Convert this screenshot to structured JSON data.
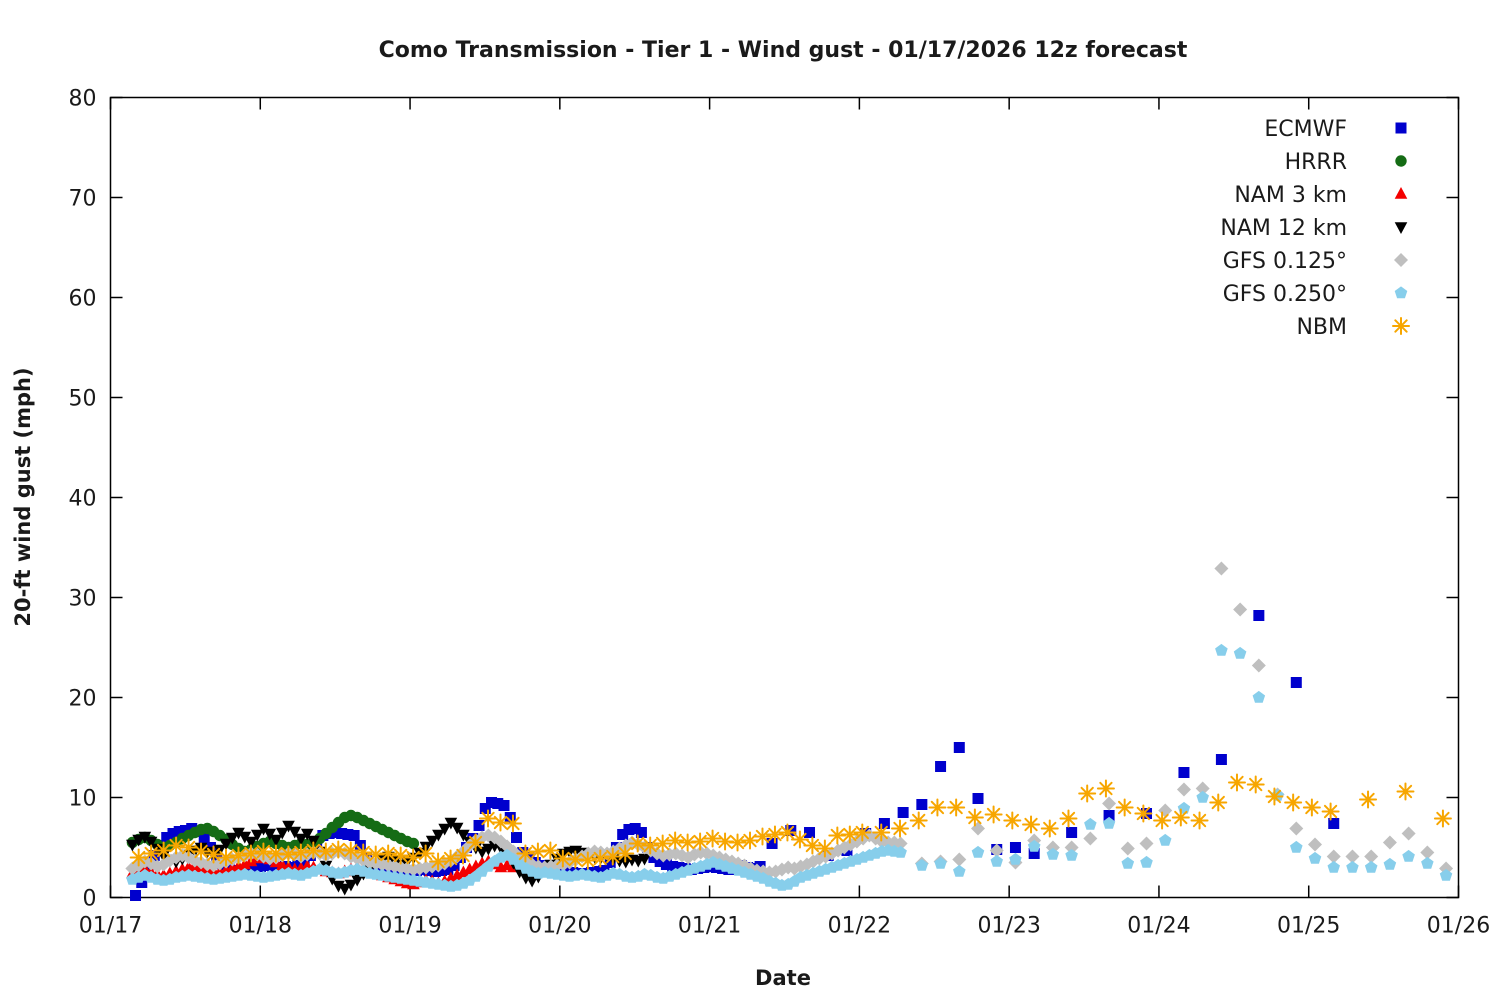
{
  "chart_data": {
    "type": "scatter",
    "title": "Como Transmission - Tier 1 - Wind gust - 01/17/2026 12z forecast",
    "xlabel": "Date",
    "ylabel": "20-ft wind gust (mph)",
    "ylim": [
      0,
      80
    ],
    "yticks": [
      0,
      10,
      20,
      30,
      40,
      50,
      60,
      70,
      80
    ],
    "xtick_labels": [
      "01/17",
      "01/18",
      "01/19",
      "01/20",
      "01/21",
      "01/22",
      "01/23",
      "01/24",
      "01/25",
      "01/26"
    ],
    "x_span_days": 9,
    "grid": false,
    "legend_position": "top-right",
    "frame_color": "#000000",
    "background_color": "#ffffff",
    "series": [
      {
        "name": "ECMWF",
        "marker": "square",
        "color": "#0000cd",
        "segments": [
          {
            "start": 0.167,
            "step": 0.0417,
            "values": [
              0.2,
              1.5,
              3.0,
              4.2,
              5.2,
              6.0,
              6.4,
              6.6,
              6.7,
              6.9,
              6.6,
              6.0,
              5.0,
              4.0,
              3.3,
              2.9,
              2.7,
              2.6,
              2.7,
              2.9,
              3.1,
              3.2,
              3.1,
              3.0,
              3.1,
              3.0,
              3.2,
              3.4,
              4.2,
              5.4,
              6.2,
              6.4,
              6.5,
              6.4,
              6.3,
              6.2,
              5.2,
              4.0,
              3.2,
              3.0,
              2.8,
              2.7,
              2.6,
              2.6,
              2.6,
              2.7,
              2.8,
              2.7,
              2.6,
              2.7,
              2.8,
              3.2,
              4.0,
              5.0,
              5.9,
              7.2,
              8.9,
              9.5,
              9.4,
              9.2,
              8.0,
              6.0,
              4.5,
              4.0,
              3.5,
              3.2,
              3.0,
              2.8,
              2.7,
              2.6,
              2.5,
              2.4,
              2.4,
              2.5,
              2.6,
              2.7,
              3.5,
              5.0,
              6.3,
              6.8,
              6.9,
              6.5,
              5.0,
              4.0,
              3.6,
              3.3,
              3.1,
              3.0,
              2.9,
              2.8,
              2.9,
              3.0,
              3.1,
              3.0,
              2.9,
              2.8,
              3.0,
              3.2,
              3.0,
              2.9,
              3.1
            ]
          },
          {
            "start": 4.417,
            "step": 0.125,
            "values": [
              5.4,
              6.7,
              6.5,
              4.2,
              4.7,
              6.4,
              7.4,
              8.5,
              9.3,
              13.1,
              15.0,
              9.9,
              4.8,
              5.0,
              4.4
            ]
          },
          {
            "start": 6.417,
            "step": 0.25,
            "values": [
              6.5,
              8.2,
              8.4,
              12.5,
              13.8,
              28.2,
              21.5,
              7.4
            ]
          }
        ]
      },
      {
        "name": "HRRR",
        "marker": "circle",
        "color": "#156c15",
        "segments": [
          {
            "start": 0.146,
            "step": 0.0417,
            "values": [
              5.5,
              5.8,
              6.0,
              5.7,
              5.3,
              5.0,
              5.2,
              5.5,
              5.9,
              6.2,
              6.5,
              6.8,
              6.9,
              6.6,
              6.2,
              5.8,
              5.3,
              4.9,
              4.6,
              4.8,
              5.1,
              5.4,
              5.6,
              5.4,
              5.2,
              5.0,
              5.2,
              5.4,
              5.3,
              5.5,
              5.9,
              6.4,
              7.0,
              7.5,
              8.0,
              8.2,
              8.0,
              7.7,
              7.4,
              7.1,
              6.8,
              6.5,
              6.2,
              5.9,
              5.6,
              5.4
            ]
          }
        ]
      },
      {
        "name": "NAM 3 km",
        "marker": "triangle-up",
        "color": "#f40000",
        "segments": [
          {
            "start": 0.146,
            "step": 0.0417,
            "values": [
              2.4,
              2.6,
              2.8,
              2.5,
              2.3,
              2.2,
              2.4,
              2.6,
              2.8,
              3.0,
              3.2,
              3.0,
              2.8,
              2.6,
              2.5,
              2.7,
              2.9,
              3.1,
              3.3,
              3.6,
              3.9,
              4.1,
              3.8,
              3.5,
              3.2,
              3.0,
              2.8,
              2.9,
              3.1,
              3.0,
              2.8,
              2.6,
              2.5,
              2.4,
              2.6,
              2.8,
              3.0,
              2.8,
              2.6,
              2.4,
              2.2,
              2.0,
              1.8,
              1.6,
              1.4,
              1.3,
              1.5,
              1.7,
              1.6,
              1.4,
              1.6,
              1.9,
              2.2,
              2.5,
              2.8,
              3.1,
              3.4,
              3.6,
              3.3,
              3.0,
              3.2,
              3.0
            ]
          }
        ]
      },
      {
        "name": "NAM 12 km",
        "marker": "triangle-down",
        "color": "#000000",
        "segments": [
          {
            "start": 0.146,
            "step": 0.0417,
            "values": [
              5.3,
              5.8,
              6.1,
              5.6,
              4.9,
              4.2,
              3.8,
              3.6,
              3.9,
              4.3,
              4.7,
              5.0,
              4.6,
              4.3,
              4.8,
              5.4,
              6.0,
              6.5,
              6.1,
              5.6,
              6.3,
              6.9,
              6.4,
              5.8,
              6.5,
              7.2,
              6.6,
              5.9,
              6.4,
              5.7,
              4.6,
              3.2,
              1.9,
              1.2,
              0.9,
              1.3,
              1.8,
              2.4,
              2.9,
              3.4,
              3.8,
              4.1,
              3.7,
              3.3,
              3.6,
              4.0,
              4.5,
              5.1,
              5.7,
              6.3,
              6.9,
              7.5,
              7.0,
              6.3,
              5.6,
              5.0,
              4.6,
              4.9,
              5.2,
              5.0,
              4.4,
              3.5,
              2.6,
              2.0,
              1.7,
              2.1,
              2.7,
              3.3,
              3.9,
              4.4,
              4.6,
              4.7,
              4.5,
              4.3,
              4.1,
              4.0,
              4.2,
              3.9,
              3.7,
              3.6,
              3.8,
              3.7,
              3.9
            ]
          }
        ]
      },
      {
        "name": "GFS 0.125°",
        "marker": "diamond",
        "color": "#bfbfbf",
        "segments": [
          {
            "start": 0.146,
            "step": 0.0417,
            "values": [
              2.9,
              3.2,
              3.6,
              3.4,
              3.1,
              3.3,
              3.7,
              4.0,
              4.2,
              4.0,
              3.7,
              3.5,
              3.3,
              3.2,
              3.4,
              3.6,
              3.8,
              4.0,
              4.2,
              4.4,
              4.3,
              4.1,
              3.9,
              4.0,
              4.2,
              4.4,
              4.3,
              4.1,
              4.3,
              4.5,
              4.4,
              4.2,
              4.4,
              4.6,
              4.4,
              4.1,
              3.9,
              3.7,
              3.5,
              3.4,
              3.3,
              3.2,
              3.1,
              3.0,
              2.9,
              2.8,
              2.9,
              3.0,
              3.1,
              3.2,
              3.4,
              3.7,
              4.1,
              4.6,
              5.2,
              5.7,
              6.0,
              6.2,
              6.0,
              5.6,
              5.1,
              4.6,
              4.0,
              3.6,
              3.3,
              3.1,
              3.0,
              3.1,
              3.2,
              3.3,
              3.5,
              3.8,
              4.1,
              4.4,
              4.6,
              4.5,
              4.4,
              4.6,
              4.9,
              5.2,
              5.5,
              5.3,
              5.0,
              4.7,
              4.4,
              4.2,
              4.3,
              4.4,
              4.2,
              4.0,
              4.3,
              4.5,
              4.4,
              4.2,
              4.0,
              3.8,
              3.6,
              3.4,
              3.2,
              2.9,
              2.7,
              2.6,
              2.5,
              2.6,
              2.8,
              3.0,
              2.9,
              3.1,
              3.3,
              3.6,
              3.9,
              4.1,
              4.4,
              4.7,
              5.0,
              5.3,
              5.6,
              5.9,
              6.2,
              5.9,
              5.6,
              5.5,
              5.5,
              5.4
            ]
          },
          {
            "start": 5.417,
            "step": 0.125,
            "values": [
              3.4,
              3.6,
              3.8,
              6.9,
              4.7,
              3.5,
              5.7,
              5.0,
              5.0,
              5.9,
              9.4,
              4.9,
              5.4,
              8.7,
              10.8,
              10.9,
              32.9,
              28.8,
              23.2,
              10.3,
              6.9,
              5.3,
              4.1,
              4.1,
              4.1,
              5.5,
              6.4,
              4.5,
              2.9
            ]
          }
        ]
      },
      {
        "name": "GFS 0.250°",
        "marker": "pentagon",
        "color": "#87ceeb",
        "segments": [
          {
            "start": 0.146,
            "step": 0.0417,
            "values": [
              1.8,
              2.0,
              2.2,
              2.0,
              1.8,
              1.7,
              1.8,
              2.0,
              2.1,
              2.2,
              2.1,
              2.0,
              1.9,
              1.8,
              1.9,
              2.0,
              2.1,
              2.2,
              2.3,
              2.2,
              2.1,
              2.0,
              2.1,
              2.2,
              2.3,
              2.4,
              2.3,
              2.2,
              2.4,
              2.6,
              2.8,
              2.7,
              2.5,
              2.4,
              2.5,
              2.7,
              2.8,
              2.6,
              2.4,
              2.3,
              2.2,
              2.1,
              2.0,
              1.9,
              1.8,
              1.7,
              1.6,
              1.5,
              1.4,
              1.3,
              1.2,
              1.1,
              1.2,
              1.4,
              1.7,
              2.1,
              2.6,
              3.1,
              3.6,
              4.0,
              4.2,
              3.8,
              3.3,
              2.9,
              2.6,
              2.4,
              2.5,
              2.4,
              2.3,
              2.2,
              2.1,
              2.2,
              2.3,
              2.2,
              2.1,
              2.0,
              2.2,
              2.4,
              2.3,
              2.1,
              2.0,
              2.1,
              2.3,
              2.2,
              2.0,
              1.9,
              2.1,
              2.3,
              2.5,
              2.7,
              2.9,
              3.1,
              3.3,
              3.5,
              3.3,
              3.1,
              2.9,
              2.7,
              2.5,
              2.3,
              2.1,
              1.9,
              1.6,
              1.4,
              1.2,
              1.3,
              1.6,
              2.0,
              2.2,
              2.4,
              2.6,
              2.8,
              3.0,
              3.2,
              3.4,
              3.6,
              3.8,
              4.0,
              4.2,
              4.4,
              4.6,
              4.7,
              4.6,
              4.5
            ]
          },
          {
            "start": 5.417,
            "step": 0.125,
            "values": [
              3.2,
              3.4,
              2.6,
              4.5,
              3.6,
              3.8,
              5.1,
              4.3,
              4.2,
              7.3,
              7.4,
              3.4,
              3.5,
              5.7,
              8.9,
              10.0,
              24.7,
              24.4,
              20.0,
              10.2,
              5.0,
              3.9,
              3.0,
              3.0,
              3.0,
              3.3,
              4.1,
              3.4,
              2.2
            ]
          }
        ]
      },
      {
        "name": "NBM",
        "marker": "asterisk",
        "color": "#f7a600",
        "segments": [
          {
            "start": 0.188,
            "step": 0.0833,
            "values": [
              4.0,
              4.4,
              4.7,
              5.2,
              5.0,
              4.6,
              4.3,
              4.0,
              4.2,
              4.4,
              4.6,
              4.4,
              4.3,
              4.5,
              4.7,
              4.6,
              4.8,
              4.7,
              4.5,
              4.3,
              4.4,
              4.2,
              4.0,
              4.4,
              3.6,
              3.9,
              4.2,
              5.5,
              7.9,
              7.5,
              7.4,
              4.4,
              4.6,
              4.7,
              3.9,
              3.8,
              3.7,
              3.9,
              4.1,
              4.4,
              5.4,
              5.2,
              5.4,
              5.7,
              5.5,
              5.6,
              5.9,
              5.6,
              5.5,
              5.7,
              6.1,
              6.3,
              6.5,
              5.8,
              5.2,
              4.9,
              6.2,
              6.3,
              6.5
            ]
          },
          {
            "start": 5.146,
            "step": 0.125,
            "values": [
              6.5,
              6.9,
              7.7,
              9.0,
              9.0,
              8.0,
              8.3,
              7.7,
              7.3,
              6.9,
              7.9,
              10.4,
              10.9,
              9.0,
              8.4,
              7.7,
              8.0,
              7.7,
              9.5,
              11.5,
              11.3,
              10.1,
              9.5,
              9.0,
              8.6
            ]
          },
          {
            "start": 8.396,
            "step": 0.25,
            "values": [
              9.8,
              10.6,
              7.9
            ]
          }
        ]
      }
    ]
  }
}
